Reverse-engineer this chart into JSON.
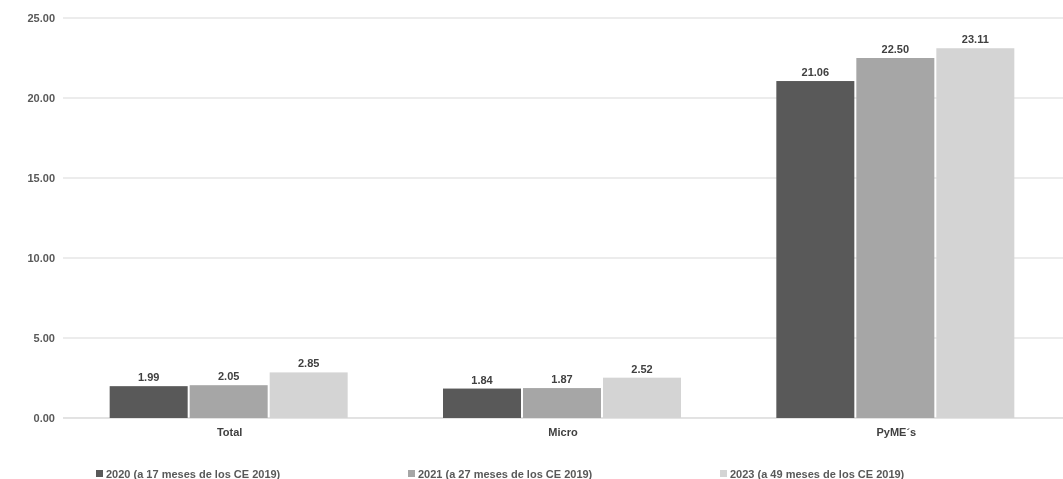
{
  "chart_data": {
    "type": "bar",
    "categories": [
      "Total",
      "Micro",
      "PyME´s"
    ],
    "series": [
      {
        "name": "2020 (a 17 meses de los CE 2019)",
        "color": "#595959",
        "values": [
          1.99,
          1.84,
          21.06
        ],
        "value_labels": [
          "1.99",
          "1.84",
          "21.06"
        ]
      },
      {
        "name": "2021 (a 27 meses de los CE 2019)",
        "color": "#a6a6a6",
        "values": [
          2.05,
          1.87,
          22.5
        ],
        "value_labels": [
          "2.05",
          "1.87",
          "22.50"
        ]
      },
      {
        "name": "2023 (a 49 meses de los CE 2019)",
        "color": "#d4d4d4",
        "values": [
          2.85,
          2.52,
          23.11
        ],
        "value_labels": [
          "2.85",
          "2.52",
          "23.11"
        ]
      }
    ],
    "ylim": [
      0,
      25
    ],
    "yticks": [
      {
        "value": 0,
        "label": "0.00"
      },
      {
        "value": 5,
        "label": "5.00"
      },
      {
        "value": 10,
        "label": "10.00"
      },
      {
        "value": 15,
        "label": "15.00"
      },
      {
        "value": 20,
        "label": "20.00"
      },
      {
        "value": 25,
        "label": "25.00"
      }
    ],
    "grid": "y",
    "legend": "bottom"
  }
}
